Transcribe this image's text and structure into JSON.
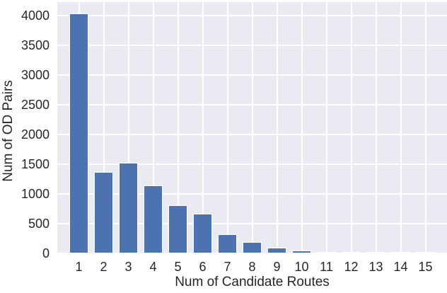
{
  "chart_data": {
    "type": "bar",
    "title": "",
    "xlabel": "Num of Candidate Routes",
    "ylabel": "Num of OD Pairs",
    "categories": [
      "1",
      "2",
      "3",
      "4",
      "5",
      "6",
      "7",
      "8",
      "9",
      "10",
      "11",
      "12",
      "13",
      "14",
      "15"
    ],
    "values": [
      4040,
      1370,
      1520,
      1150,
      805,
      670,
      320,
      195,
      95,
      45,
      15,
      10,
      5,
      3,
      2
    ],
    "yticks": [
      0,
      500,
      1000,
      1500,
      2000,
      2500,
      3000,
      3500,
      4000
    ],
    "ylim": [
      0,
      4230
    ],
    "grid": true,
    "legend": "none",
    "colors": {
      "bar_fill": "#4c72b0",
      "bar_edge": "#ffffff",
      "plot_background": "#eaeaf2",
      "gridline": "#ffffff",
      "text": "#262626",
      "figure_background": "#ffffff"
    }
  }
}
